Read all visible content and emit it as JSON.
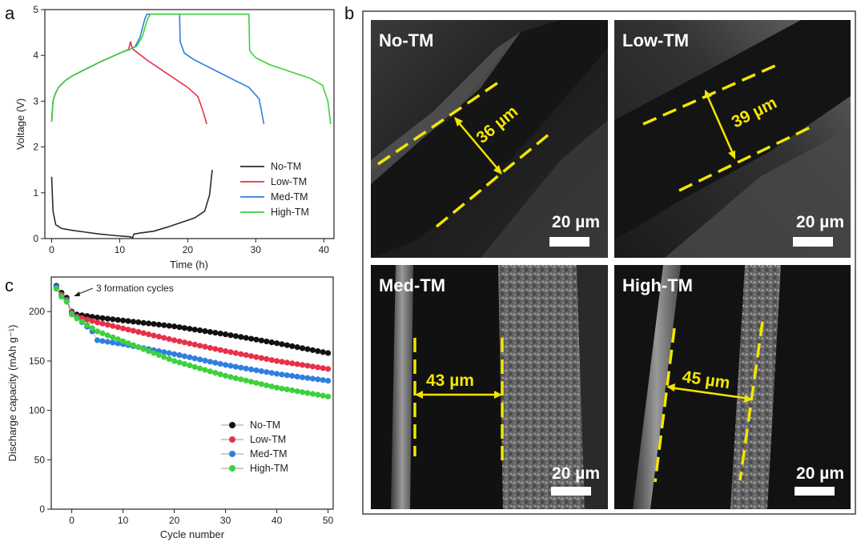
{
  "panel_labels": {
    "a": "a",
    "b": "b",
    "c": "c"
  },
  "annotation_c": "3 formation cycles",
  "colors": {
    "No-TM": "#2b2b2b",
    "Low-TM": "#e8304a",
    "Med-TM": "#2f7fe0",
    "High-TM": "#3dd13d"
  },
  "chart_data": [
    {
      "panel": "a",
      "type": "line",
      "xlabel": "Time (h)",
      "ylabel": "Voltage (V)",
      "xlim": [
        -1,
        41.5
      ],
      "ylim": [
        0,
        5
      ],
      "xticks": [
        0,
        10,
        20,
        30,
        40
      ],
      "yticks": [
        0,
        1,
        2,
        3,
        4,
        5
      ],
      "legend_position": "lower-right",
      "series": [
        {
          "name": "No-TM",
          "color": "#2b2b2b",
          "x": [
            0,
            0.2,
            0.6,
            1.5,
            3,
            5,
            7,
            9,
            10.5,
            11.5,
            11.9,
            12.1,
            13,
            15,
            17,
            19,
            21,
            22.5,
            23.2,
            23.6
          ],
          "y": [
            1.35,
            0.6,
            0.3,
            0.22,
            0.18,
            0.14,
            0.1,
            0.07,
            0.05,
            0.04,
            0.02,
            0.1,
            0.12,
            0.16,
            0.25,
            0.35,
            0.45,
            0.6,
            0.95,
            1.5
          ]
        },
        {
          "name": "Low-TM",
          "color": "#e8304a",
          "x": [
            0,
            0.2,
            0.5,
            1,
            2,
            3,
            5,
            7,
            9,
            10.5,
            11.3,
            11.6,
            11.8,
            12,
            14,
            16,
            18,
            20,
            21.5,
            22.2,
            22.8
          ],
          "y": [
            2.55,
            3.0,
            3.15,
            3.3,
            3.45,
            3.55,
            3.7,
            3.85,
            3.98,
            4.08,
            4.13,
            4.3,
            4.18,
            4.13,
            3.9,
            3.7,
            3.5,
            3.3,
            3.1,
            2.8,
            2.5
          ]
        },
        {
          "name": "Med-TM",
          "color": "#2f7fe0",
          "x": [
            0,
            0.2,
            0.5,
            1,
            2,
            3,
            5,
            7,
            9,
            10.5,
            11.5,
            12.3,
            13,
            13.7,
            14,
            18.8,
            18.9,
            19.5,
            21,
            23,
            25,
            27,
            29,
            30.5,
            31.2
          ],
          "y": [
            2.6,
            3.0,
            3.15,
            3.3,
            3.45,
            3.55,
            3.7,
            3.85,
            3.98,
            4.08,
            4.13,
            4.2,
            4.4,
            4.8,
            4.9,
            4.9,
            4.3,
            4.05,
            3.9,
            3.75,
            3.6,
            3.45,
            3.3,
            3.05,
            2.5
          ]
        },
        {
          "name": "High-TM",
          "color": "#3dd13d",
          "x": [
            0,
            0.2,
            0.5,
            1,
            2,
            3,
            5,
            7,
            9,
            10.5,
            11.5,
            12.5,
            13.3,
            14.1,
            14.5,
            29,
            29.1,
            30,
            32,
            35,
            38,
            39.8,
            40.6,
            41
          ],
          "y": [
            2.55,
            3.0,
            3.15,
            3.3,
            3.45,
            3.55,
            3.7,
            3.85,
            3.98,
            4.08,
            4.13,
            4.2,
            4.4,
            4.8,
            4.9,
            4.9,
            4.1,
            3.95,
            3.8,
            3.65,
            3.5,
            3.35,
            3.0,
            2.5
          ]
        }
      ]
    },
    {
      "panel": "c",
      "type": "scatter",
      "xlabel": "Cycle number",
      "ylabel": "Discharge capacity (mAh g⁻¹)",
      "xlim": [
        -4,
        51
      ],
      "ylim": [
        0,
        235
      ],
      "xticks": [
        0,
        10,
        20,
        30,
        40,
        50
      ],
      "yticks": [
        0,
        50,
        100,
        150,
        200
      ],
      "legend_position": "lower-center",
      "cycles_start": -3,
      "cycles_end": 50,
      "series": [
        {
          "name": "No-TM",
          "color": "#111111",
          "anchors": [
            [
              -3,
              226
            ],
            [
              -2,
              219
            ],
            [
              -1,
              214
            ],
            [
              0,
              200
            ],
            [
              1,
              197
            ],
            [
              5,
              194
            ],
            [
              10,
              191
            ],
            [
              20,
              185
            ],
            [
              30,
              177
            ],
            [
              40,
              168
            ],
            [
              50,
              158
            ]
          ]
        },
        {
          "name": "Low-TM",
          "color": "#e8304a",
          "anchors": [
            [
              -3,
              224
            ],
            [
              -2,
              217
            ],
            [
              -1,
              212
            ],
            [
              0,
              199
            ],
            [
              1,
              195
            ],
            [
              5,
              189
            ],
            [
              10,
              183
            ],
            [
              20,
              171
            ],
            [
              30,
              160
            ],
            [
              40,
              150
            ],
            [
              50,
              142
            ]
          ]
        },
        {
          "name": "Med-TM",
          "color": "#2f7fe0",
          "anchors": [
            [
              -3,
              225
            ],
            [
              -2,
              216
            ],
            [
              -1,
              211
            ],
            [
              0,
              198
            ],
            [
              1,
              194
            ],
            [
              4,
              180
            ],
            [
              5,
              171
            ],
            [
              10,
              167
            ],
            [
              20,
              157
            ],
            [
              30,
              146
            ],
            [
              40,
              137
            ],
            [
              50,
              130
            ]
          ]
        },
        {
          "name": "High-TM",
          "color": "#3dd13d",
          "anchors": [
            [
              -3,
              223
            ],
            [
              -2,
              215
            ],
            [
              -1,
              210
            ],
            [
              0,
              197
            ],
            [
              1,
              193
            ],
            [
              5,
              180
            ],
            [
              10,
              170
            ],
            [
              20,
              150
            ],
            [
              30,
              135
            ],
            [
              40,
              123
            ],
            [
              50,
              114
            ]
          ]
        }
      ]
    }
  ],
  "sem": {
    "tiles": [
      {
        "name": "No-TM",
        "thickness": "36 µm",
        "scale": "20 µm"
      },
      {
        "name": "Low-TM",
        "thickness": "39 µm",
        "scale": "20 µm"
      },
      {
        "name": "Med-TM",
        "thickness": "43 µm",
        "scale": "20 µm"
      },
      {
        "name": "High-TM",
        "thickness": "45 µm",
        "scale": "20 µm"
      }
    ]
  }
}
